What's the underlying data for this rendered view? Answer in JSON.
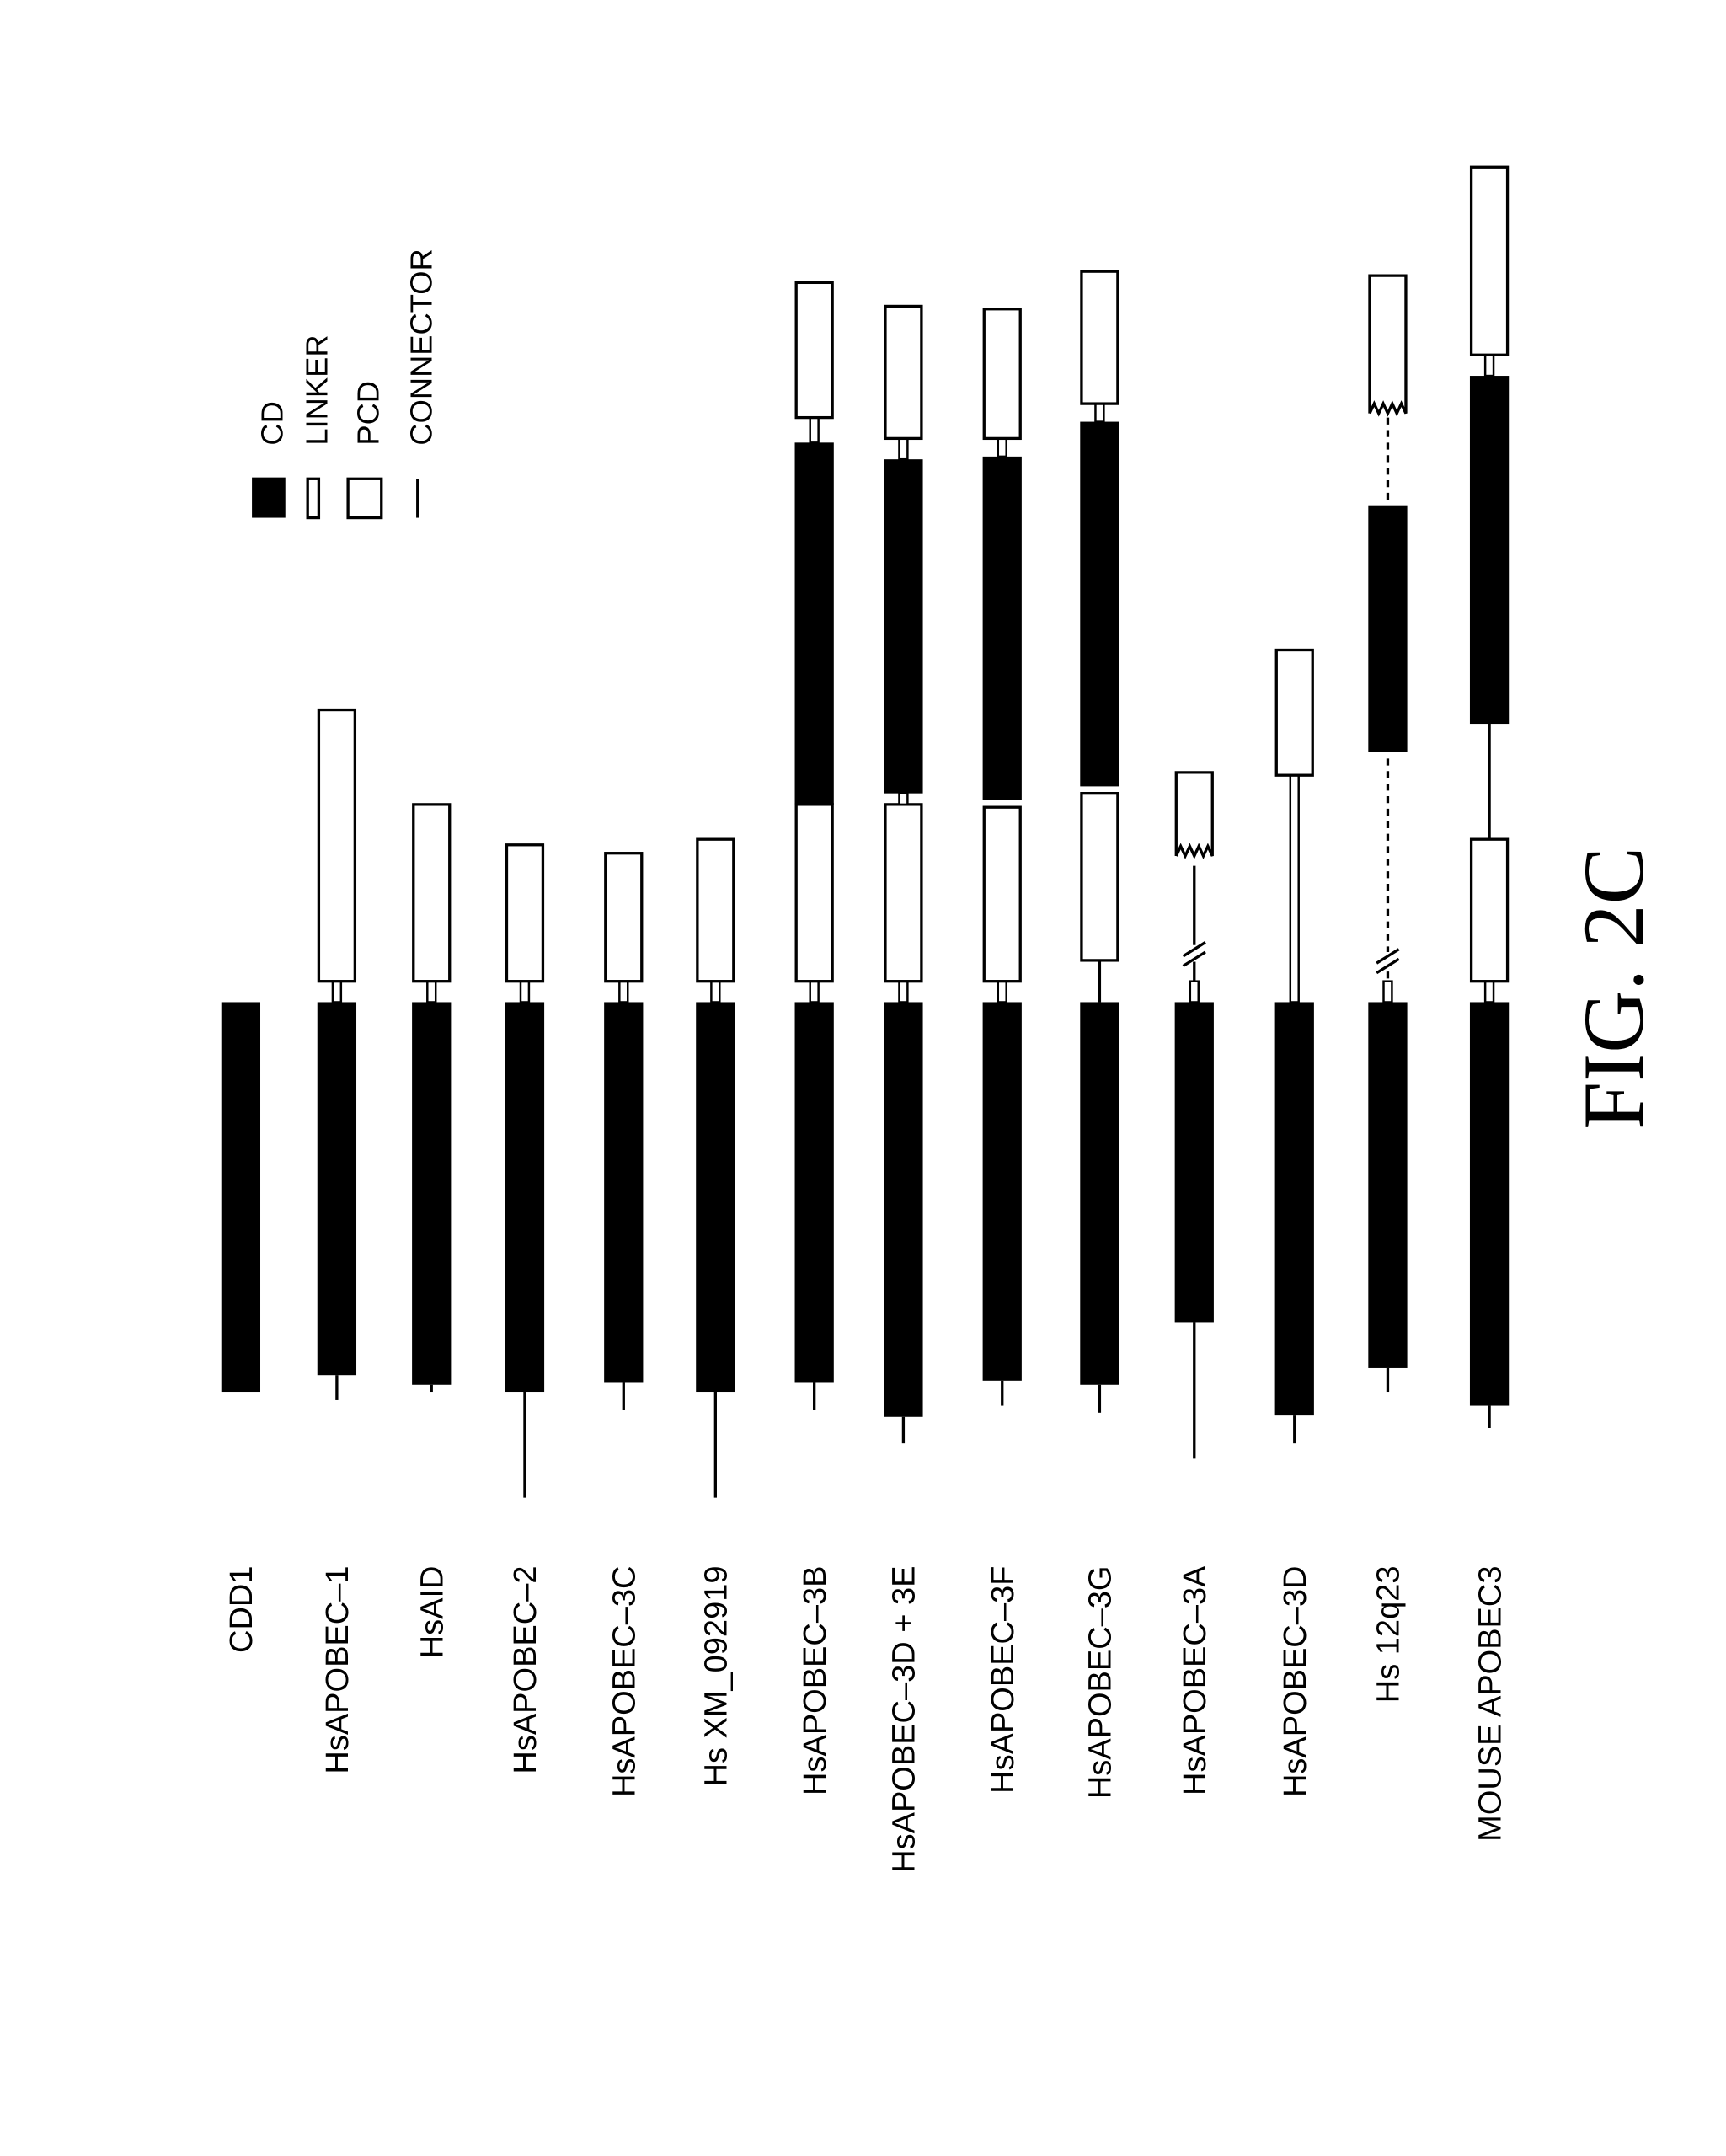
{
  "legend": [
    {
      "label": "CD"
    },
    {
      "label": "LINKER"
    },
    {
      "label": "PCD"
    },
    {
      "label": "CONNECTOR"
    }
  ],
  "rows": [
    {
      "label": "CDD1"
    },
    {
      "label": "HsAPOBEC–1"
    },
    {
      "label": "HsAID"
    },
    {
      "label": "HsAPOBEC–2"
    },
    {
      "label": "HsAPOBEC–3C"
    },
    {
      "label": "Hs XM_092919"
    },
    {
      "label": "HsAPOBEC–3B"
    },
    {
      "label": "HsAPOBEC–3D + 3E"
    },
    {
      "label": "HsAPOBEC–3F"
    },
    {
      "label": "HsAPOBEC–3G"
    },
    {
      "label": "HsAPOBEC–3A"
    },
    {
      "label": "HsAPOBEC–3D"
    },
    {
      "label": "Hs 12q23"
    },
    {
      "label": "MOUSE APOBEC3"
    }
  ],
  "figure_label": "FIG. 2C"
}
